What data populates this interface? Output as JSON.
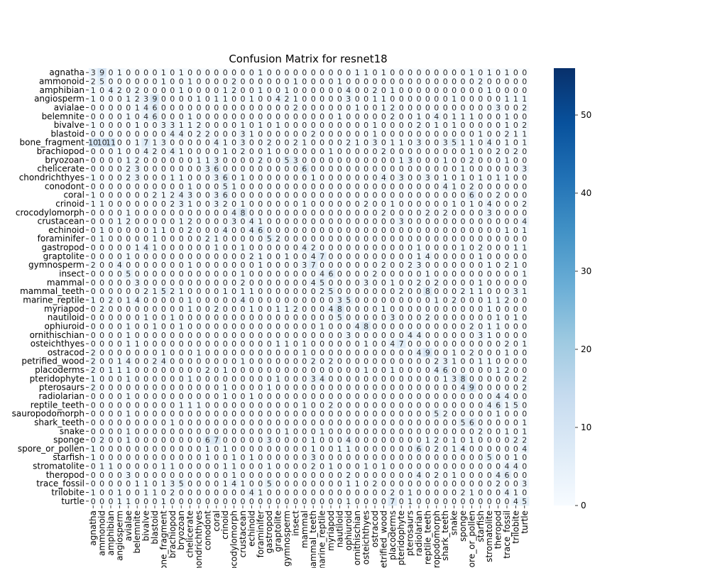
{
  "chart_data": {
    "type": "heatmap",
    "title": "Confusion Matrix for resnet18",
    "xlabel": "",
    "ylabel": "",
    "labels": [
      "agnatha",
      "ammonoid",
      "amphibian",
      "angiosperm",
      "avialae",
      "belemnite",
      "bivalve",
      "blastoid",
      "bone_fragment",
      "brachiopod",
      "bryozoan",
      "chelicerate",
      "chondrichthyes",
      "conodont",
      "coral",
      "crinoid",
      "crocodylomorph",
      "crustacean",
      "echinoid",
      "foraminifer",
      "gastropod",
      "graptolite",
      "gymnosperm",
      "insect",
      "mammal",
      "mammal_teeth",
      "marine_reptile",
      "myriapod",
      "nautiloid",
      "ophiuroid",
      "ornithischian",
      "osteichthyes",
      "ostracod",
      "petrified_wood",
      "placoderms",
      "pteridophyte",
      "pterosaurs",
      "radiolarian",
      "reptile_teeth",
      "sauropodomorph",
      "shark_teeth",
      "snake",
      "sponge",
      "spore_or_pollen",
      "starfish",
      "stromatolite",
      "theropod",
      "trace_fossil",
      "trilobite",
      "turtle"
    ],
    "x_tick_labels": [
      "agnatha",
      "ammonoid",
      "amphibian",
      "angiosperm",
      "avialae",
      "belemnite",
      "bivalve",
      "blastoid",
      "bone_fragment",
      "brachiopod",
      "bryozoan",
      "chelicerate",
      "chondrichthyes",
      "conodont",
      "coral",
      "crinoid",
      "crocodylomorph",
      "crustacean",
      "echinoid",
      "foraminifer",
      "gastropod",
      "graptolite",
      "gymnosperm",
      "insect",
      "mammal",
      "mammal_teeth",
      "marine_reptile",
      "myriapod",
      "nautiloid",
      "ophiuroid",
      "ornithischian",
      "osteichthyes",
      "ostracod",
      "petrified_wood",
      "placoderms",
      "pteridophyte",
      "pterosaurs",
      "radiolarian",
      "reptile_teeth",
      "sauropodomorph",
      "shark_teeth",
      "snake",
      "sponge",
      "spore_or_pollen",
      "starfish",
      "stromatolite",
      "theropod",
      "trace_fossil",
      "trilobite",
      "turtle"
    ],
    "matrix": [
      "39010000101000000001000000000011010000000001010100",
      "25000000100100002000000100001000000000000000200000",
      "10420200001000012001001000000400201000000000010000",
      "10001239000010110010042100000300110000000100000111",
      "00000146000000000000000200000010012000000000003002",
      "00001046000100000000000000001000002001040111000100",
      "10000100331120000101010000000000100002010100000102",
      "00000000044022000310000002000000100000000000100211",
      "10101100171300000410300200210000210301103003511040101",
      "00010042041000010200100000010000020000000001002020",
      "00001200000011300002005300000000000130001002000100",
      "00002300000003600000000060000000000000000010000003",
      "10002300011000360100000001000000040300301010101100",
      "00000000000100051000000000000000000000004102000000",
      "10000002124300360000000000000000000000000006002000",
      "11000000023100320100000010000002001000000101040002",
      "00001000000000004800000000000000020000202000030000",
      "00012000001200003041000000000000000300000000000004",
      "01000001100200040046000000000000000000000000000101",
      "01000001000002100000520000000000000000000000000000",
      "00000141000000100100000042000000000001000010200011",
      "00001000000000000021001004700000000001400000100000",
      "20040000000100000001000037000000020023000000010210",
      "00005000000000000100000000460000200000100000000001",
      "00000300000000000200000004500003001002020000100000",
      "00000021521000010110000000250000000200800021100031",
      "10201400000100000400000000003500000000010200011200",
      "02000000000100200010011200048000010000000000010000",
      "00000010010000000000000000005000003000200000001010",
      "00001001001000000000000000100048000000000002011000",
      "00001000000000000000000000000300000044000000310000",
      "00001100000000000000011010000001004700000000000201",
      "20000000100010000000000010000000000004900102000100",
      "20014002400000000100000002020000000000023100110000",
      "20111000000002010000000000000001001000046000001200",
      "10001000000100000000010003400000000000001380000002",
      "20000000000000010000100000000000000000000049000002",
      "00001000000000010010000000000000000000000000004400",
      "00000000001110000000000010020000000000000000046150",
      "00001000000000000000000000000000000000052000001000",
      "00000000010000000000000000000000000000000056000001",
      "00001000000000000000001000100000000000000000200101",
      "02001000000006700000300001000400000000120101000022",
      "10000000000001010000000001001100000006020140000004",
      "10000000000001001010000003000000000000000000050010",
      "01100000110000011000100002010001010000000000000440",
      "00003000000000001000000000000200000004020100004600",
      "00000110135000014100500000000110200000000000002003",
      "10010011020000000041000000000000002010000021000410",
      "00011000100000000000000000000100007010000000000045"
    ],
    "colorbar": {
      "min": 0,
      "max": 56,
      "ticks": [
        0,
        10,
        20,
        30,
        40,
        50
      ]
    },
    "colormap": "Blues",
    "annotations": true
  },
  "colors": {
    "low": "#f7fbff",
    "high": "#08306b",
    "text_dark": "#262626",
    "text_light": "#ffffff"
  }
}
